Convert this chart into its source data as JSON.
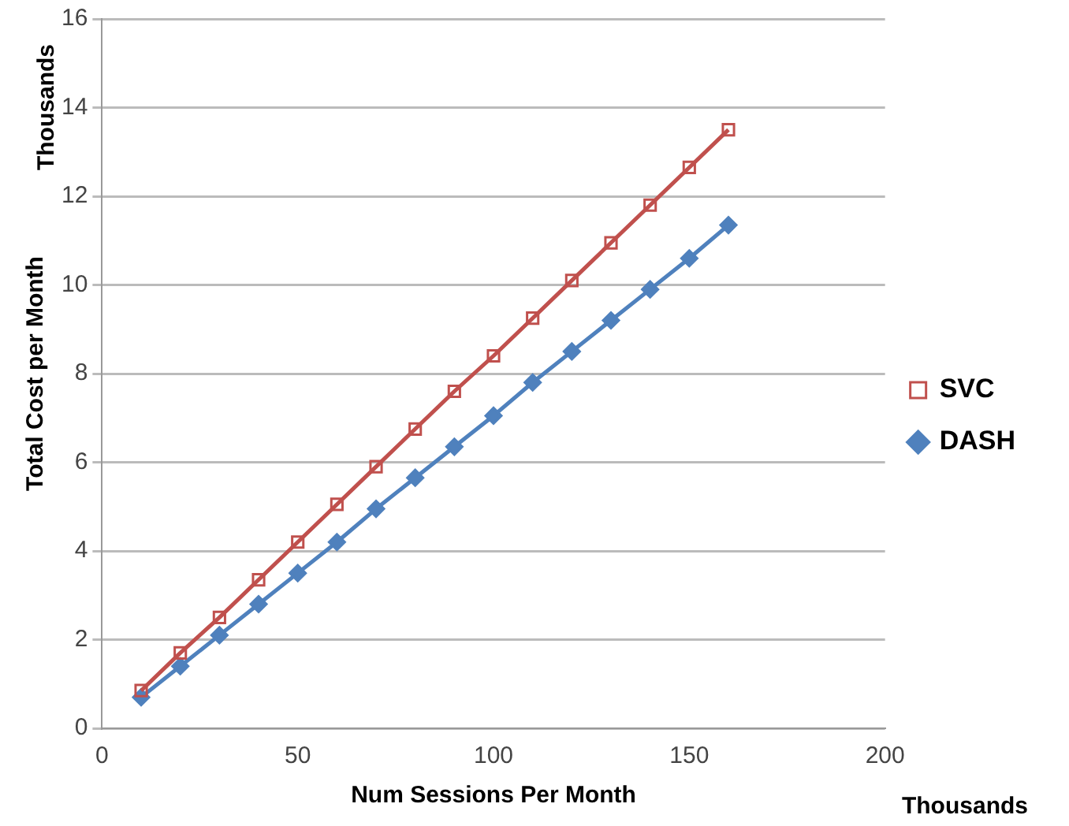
{
  "chart_data": {
    "type": "line",
    "xlabel": "Num Sessions Per Month",
    "ylabel": "Total Cost per Month",
    "annotations": [
      "Thousands",
      "Thousands"
    ],
    "x": [
      10,
      20,
      30,
      40,
      50,
      60,
      70,
      80,
      90,
      100,
      110,
      120,
      130,
      140,
      150,
      160
    ],
    "series": [
      {
        "name": "DASH",
        "color": "#4f81bd",
        "marker": "diamond",
        "values": [
          0.7,
          1.4,
          2.1,
          2.8,
          3.5,
          4.2,
          4.95,
          5.65,
          6.35,
          7.05,
          7.8,
          8.5,
          9.2,
          9.9,
          10.6,
          11.35
        ]
      },
      {
        "name": "SVC",
        "color": "#c0504d",
        "marker": "square",
        "values": [
          0.85,
          1.7,
          2.5,
          3.35,
          4.2,
          5.05,
          5.9,
          6.75,
          7.6,
          8.4,
          9.25,
          10.1,
          10.95,
          11.8,
          12.65,
          13.5
        ]
      }
    ],
    "xlim": [
      0,
      200
    ],
    "xticks": [
      0,
      50,
      100,
      150,
      200
    ],
    "ylim": [
      0,
      16
    ],
    "yticks": [
      0,
      2,
      4,
      6,
      8,
      10,
      12,
      14,
      16
    ],
    "grid": "y",
    "legend": "right"
  }
}
